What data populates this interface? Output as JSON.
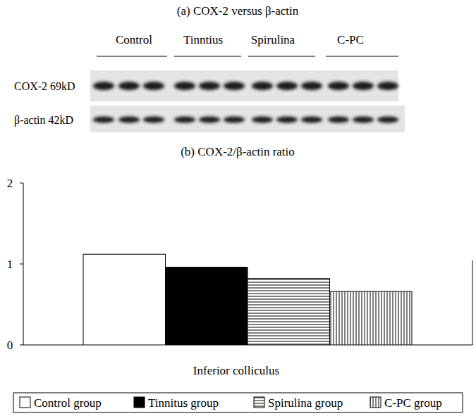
{
  "blot": {
    "title": "(a) COX-2 versus β-actin",
    "groups": [
      "Control",
      "Tinntius",
      "Spirulina",
      "C-PC"
    ],
    "rows": [
      {
        "label": "COX-2 69kD"
      },
      {
        "label": "β-actin 42kD"
      }
    ]
  },
  "chart_data": {
    "type": "bar",
    "title": "(b) COX-2/β-actin ratio",
    "categories": [
      "Inferior colliculus"
    ],
    "series": [
      {
        "name": "Control group",
        "color": "#ffffff",
        "values": [
          1.12
        ]
      },
      {
        "name": "Tinnitus group",
        "color": "#000000",
        "values": [
          0.96
        ]
      },
      {
        "name": "Spirulina group",
        "color": "#ffffff",
        "values": [
          0.82
        ]
      },
      {
        "name": "C-PC group",
        "color": "#ffffff",
        "values": [
          0.66
        ]
      }
    ],
    "ylim": [
      0,
      2
    ],
    "yticks": [
      0,
      1,
      2
    ],
    "grid": false,
    "legend": "bottom"
  }
}
